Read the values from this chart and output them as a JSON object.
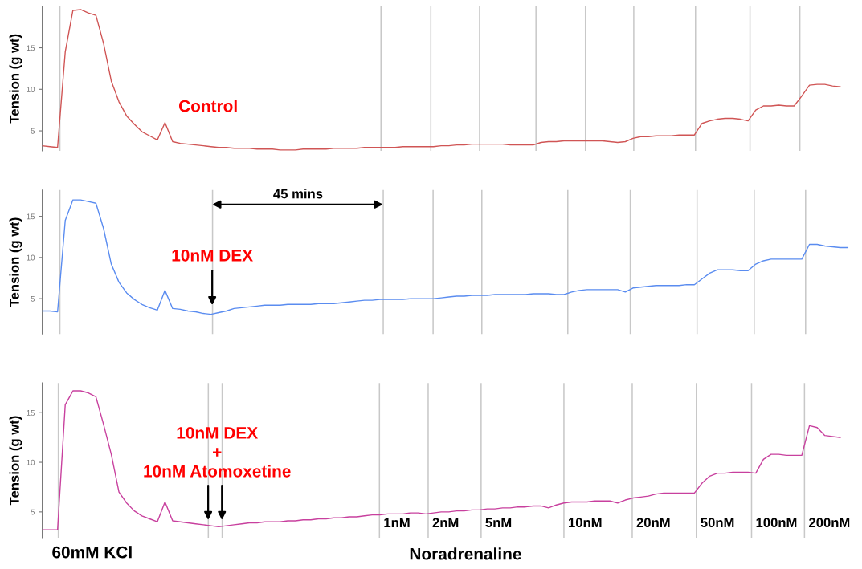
{
  "chart_data": [
    {
      "type": "line",
      "ylabel": "Tension (g wt)",
      "ylim": [
        2.6,
        20
      ],
      "yticks": [
        5,
        10,
        15
      ],
      "tick_labels": "y",
      "grid": false,
      "legend": false,
      "annotations": [
        "Control"
      ],
      "categories": [
        null,
        null,
        null,
        null,
        null,
        null,
        null,
        null,
        null,
        null,
        null,
        null,
        null,
        null,
        null,
        null,
        null,
        null,
        null,
        null,
        null,
        null,
        null,
        null,
        null,
        null,
        null,
        null,
        null,
        null,
        null,
        null,
        null,
        null,
        null,
        null,
        null,
        null,
        null,
        null,
        null,
        null,
        null,
        null,
        null,
        null,
        null,
        null,
        null,
        null,
        null,
        null,
        null,
        null,
        null,
        null,
        null,
        null,
        null,
        null,
        null,
        null,
        null,
        null,
        null,
        null,
        null,
        null,
        null,
        null,
        null,
        null,
        null,
        null,
        null,
        null,
        null,
        null,
        null,
        null,
        null,
        null,
        null,
        null,
        null,
        null,
        null,
        null,
        null,
        null,
        null,
        null,
        null,
        null,
        null,
        null,
        null,
        null,
        null,
        null,
        null,
        null,
        null,
        null,
        null,
        null
      ],
      "series": [
        {
          "color": "#d05555",
          "values": [
            3.2,
            3.1,
            3.0,
            14.5,
            19.5,
            19.6,
            19.2,
            18.9,
            15.5,
            11.0,
            8.5,
            6.8,
            5.8,
            4.9,
            4.4,
            3.9,
            6.0,
            3.7,
            3.5,
            3.4,
            3.3,
            3.2,
            3.1,
            3.0,
            3.0,
            2.9,
            2.9,
            2.9,
            2.8,
            2.8,
            2.8,
            2.7,
            2.7,
            2.7,
            2.8,
            2.8,
            2.8,
            2.8,
            2.9,
            2.9,
            2.9,
            2.9,
            3.0,
            3.0,
            3.0,
            3.0,
            3.0,
            3.1,
            3.1,
            3.1,
            3.1,
            3.1,
            3.2,
            3.2,
            3.3,
            3.3,
            3.4,
            3.4,
            3.4,
            3.4,
            3.4,
            3.3,
            3.3,
            3.3,
            3.3,
            3.6,
            3.7,
            3.7,
            3.8,
            3.8,
            3.8,
            3.8,
            3.8,
            3.8,
            3.7,
            3.6,
            3.7,
            4.1,
            4.3,
            4.3,
            4.4,
            4.4,
            4.4,
            4.5,
            4.5,
            4.5,
            5.9,
            6.2,
            6.4,
            6.5,
            6.5,
            6.4,
            6.2,
            7.5,
            8.0,
            8.0,
            8.1,
            8.0,
            8.0,
            9.2,
            10.5,
            10.6,
            10.6,
            10.4,
            10.3,
            null
          ]
        }
      ]
    },
    {
      "type": "line",
      "ylabel": "Tension (g wt)",
      "ylim": [
        0.7,
        18.2
      ],
      "yticks": [
        5,
        10,
        15
      ],
      "tick_labels": "y",
      "grid": false,
      "legend": false,
      "annotations": [
        "10nM DEX",
        "45 mins"
      ],
      "categories": [
        null,
        null,
        null,
        null,
        null,
        null,
        null,
        null,
        null,
        null,
        null,
        null,
        null,
        null,
        null,
        null,
        null,
        null,
        null,
        null,
        null,
        null,
        null,
        null,
        null,
        null,
        null,
        null,
        null,
        null,
        null,
        null,
        null,
        null,
        null,
        null,
        null,
        null,
        null,
        null,
        null,
        null,
        null,
        null,
        null,
        null,
        null,
        null,
        null,
        null,
        null,
        null,
        null,
        null,
        null,
        null,
        null,
        null,
        null,
        null,
        null,
        null,
        null,
        null,
        null,
        null,
        null,
        null,
        null,
        null,
        null,
        null,
        null,
        null,
        null,
        null,
        null,
        null,
        null,
        null,
        null,
        null,
        null,
        null,
        null,
        null,
        null,
        null,
        null,
        null,
        null,
        null,
        null,
        null,
        null,
        null,
        null,
        null,
        null,
        null,
        null,
        null,
        null,
        null,
        null,
        null
      ],
      "series": [
        {
          "color": "#5a8cf0",
          "values": [
            3.5,
            3.5,
            3.4,
            14.5,
            17.0,
            17.0,
            16.8,
            16.6,
            13.5,
            9.2,
            7.0,
            5.7,
            4.9,
            4.3,
            3.9,
            3.6,
            6.0,
            3.8,
            3.7,
            3.5,
            3.4,
            3.2,
            3.1,
            3.3,
            3.5,
            3.8,
            3.9,
            4.0,
            4.1,
            4.2,
            4.2,
            4.2,
            4.3,
            4.3,
            4.3,
            4.3,
            4.4,
            4.4,
            4.4,
            4.5,
            4.6,
            4.7,
            4.8,
            4.8,
            4.9,
            4.9,
            4.9,
            4.9,
            5.0,
            5.0,
            5.0,
            5.0,
            5.1,
            5.2,
            5.3,
            5.3,
            5.4,
            5.4,
            5.4,
            5.5,
            5.5,
            5.5,
            5.5,
            5.5,
            5.6,
            5.6,
            5.6,
            5.5,
            5.5,
            5.8,
            6.0,
            6.1,
            6.1,
            6.1,
            6.1,
            6.1,
            5.8,
            6.3,
            6.4,
            6.5,
            6.6,
            6.6,
            6.6,
            6.6,
            6.7,
            6.7,
            7.4,
            8.1,
            8.5,
            8.5,
            8.5,
            8.4,
            8.4,
            9.2,
            9.6,
            9.8,
            9.8,
            9.8,
            9.8,
            9.8,
            11.6,
            11.6,
            11.4,
            11.3,
            11.2,
            11.2
          ]
        }
      ]
    },
    {
      "type": "line",
      "ylabel": "Tension (g wt)",
      "ylim": [
        2.4,
        18
      ],
      "yticks": [
        5,
        10,
        15
      ],
      "tick_labels": "y",
      "grid": false,
      "legend": false,
      "annotations": [
        "10nM DEX\n+\n10nM Atomoxetine",
        "60mM KCl",
        "Noradrenaline",
        "1nM",
        "2nM",
        "5nM",
        "10nM",
        "20nM",
        "50nM",
        "100nM",
        "200nM"
      ],
      "categories": [
        null,
        null,
        null,
        null,
        null,
        null,
        null,
        null,
        null,
        null,
        null,
        null,
        null,
        null,
        null,
        null,
        null,
        null,
        null,
        null,
        null,
        null,
        null,
        null,
        null,
        null,
        null,
        null,
        null,
        null,
        null,
        null,
        null,
        null,
        null,
        null,
        null,
        null,
        null,
        null,
        null,
        null,
        null,
        null,
        null,
        null,
        null,
        null,
        null,
        null,
        null,
        null,
        null,
        null,
        null,
        null,
        null,
        null,
        null,
        null,
        null,
        null,
        null,
        null,
        null,
        null,
        null,
        null,
        null,
        null,
        null,
        null,
        null,
        null,
        null,
        null,
        null,
        null,
        null,
        null,
        null,
        null,
        null,
        null,
        null,
        null,
        null,
        null,
        null,
        null,
        null,
        null,
        null,
        null,
        null,
        null,
        null,
        null,
        null,
        null,
        null,
        null,
        null,
        null,
        null,
        null
      ],
      "series": [
        {
          "color": "#c8409e",
          "values": [
            3.2,
            3.2,
            3.2,
            15.8,
            17.2,
            17.2,
            17.0,
            16.6,
            13.8,
            10.8,
            7.0,
            5.9,
            5.1,
            4.6,
            4.3,
            4.0,
            6.0,
            4.1,
            4.0,
            3.9,
            3.8,
            3.7,
            3.6,
            3.5,
            3.6,
            3.7,
            3.8,
            3.9,
            3.9,
            4.0,
            4.0,
            4.0,
            4.1,
            4.1,
            4.2,
            4.2,
            4.3,
            4.3,
            4.4,
            4.4,
            4.5,
            4.5,
            4.6,
            4.7,
            4.7,
            4.8,
            4.8,
            4.8,
            4.9,
            4.9,
            4.8,
            4.9,
            5.0,
            5.0,
            5.1,
            5.1,
            5.2,
            5.2,
            5.3,
            5.3,
            5.4,
            5.4,
            5.5,
            5.5,
            5.6,
            5.6,
            5.4,
            5.7,
            5.9,
            6.0,
            6.0,
            6.0,
            6.1,
            6.1,
            6.1,
            5.9,
            6.2,
            6.4,
            6.5,
            6.6,
            6.8,
            6.9,
            6.9,
            6.9,
            6.9,
            6.9,
            7.9,
            8.6,
            8.9,
            8.9,
            9.0,
            9.0,
            9.0,
            8.9,
            10.3,
            10.8,
            10.8,
            10.7,
            10.7,
            10.7,
            13.7,
            13.5,
            12.7,
            12.6,
            12.5,
            null
          ]
        }
      ]
    }
  ]
}
